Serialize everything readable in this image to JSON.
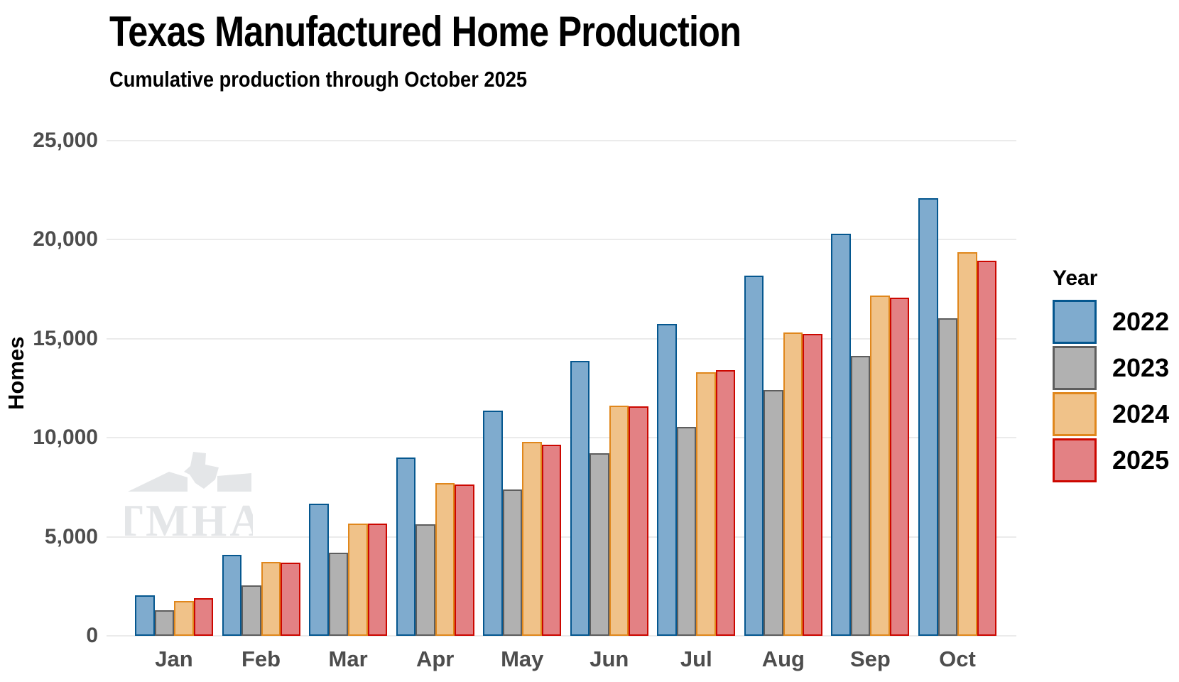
{
  "title": "Texas Manufactured Home Production",
  "subtitle": "Cumulative production through October 2025",
  "watermark_text": "TMHA",
  "legend": {
    "title": "Year"
  },
  "chart_data": {
    "type": "bar",
    "title": "Texas Manufactured Home Production",
    "subtitle": "Cumulative production through October 2025",
    "xlabel": "",
    "ylabel": "Homes",
    "ylim": [
      0,
      25000
    ],
    "yticks": [
      0,
      5000,
      10000,
      15000,
      20000,
      25000
    ],
    "ytick_labels": [
      "0",
      "5,000",
      "10,000",
      "15,000",
      "20,000",
      "25,000"
    ],
    "grid": true,
    "legend_position": "right",
    "categories": [
      "Jan",
      "Feb",
      "Mar",
      "Apr",
      "May",
      "Jun",
      "Jul",
      "Aug",
      "Sep",
      "Oct"
    ],
    "series": [
      {
        "name": "2022",
        "fill": "#7fabce",
        "stroke": "#05578f",
        "values": [
          2060,
          4080,
          6690,
          9020,
          11360,
          13890,
          15730,
          18170,
          20290,
          22110
        ]
      },
      {
        "name": "2023",
        "fill": "#b1b1b1",
        "stroke": "#5e5e5e",
        "values": [
          1290,
          2540,
          4200,
          5650,
          7400,
          9220,
          10530,
          12410,
          14140,
          16030
        ]
      },
      {
        "name": "2024",
        "fill": "#f0c289",
        "stroke": "#e0871c",
        "values": [
          1750,
          3720,
          5670,
          7710,
          9810,
          11610,
          13320,
          15300,
          17190,
          19360
        ]
      },
      {
        "name": "2025",
        "fill": "#e38184",
        "stroke": "#cc0700",
        "values": [
          1900,
          3680,
          5660,
          7630,
          9650,
          11570,
          13420,
          15250,
          17070,
          18930
        ]
      }
    ],
    "watermark": "TMHA"
  }
}
